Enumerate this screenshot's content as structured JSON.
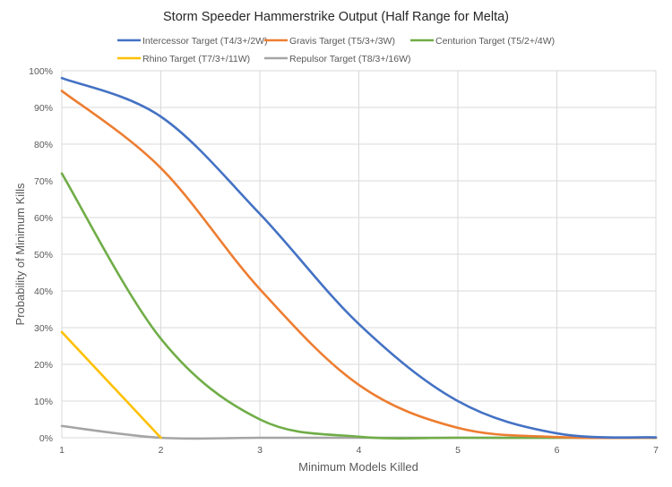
{
  "chart_data": {
    "type": "line",
    "title": "Storm Speeder Hammerstrike Output (Half Range for Melta)",
    "xlabel": "Minimum Models Killed",
    "ylabel": "Probability of Minimum Kills",
    "x": [
      1,
      2,
      3,
      4,
      5,
      6,
      7
    ],
    "xlim": [
      1,
      7
    ],
    "ylim": [
      0,
      1
    ],
    "x_ticks": [
      "1",
      "2",
      "3",
      "4",
      "5",
      "6",
      "7"
    ],
    "y_ticks": [
      {
        "value": 0,
        "label": "0%"
      },
      {
        "value": 0.1,
        "label": "10%"
      },
      {
        "value": 0.2,
        "label": "20%"
      },
      {
        "value": 0.3,
        "label": "30%"
      },
      {
        "value": 0.4,
        "label": "40%"
      },
      {
        "value": 0.5,
        "label": "50%"
      },
      {
        "value": 0.6,
        "label": "60%"
      },
      {
        "value": 0.7,
        "label": "70%"
      },
      {
        "value": 0.8,
        "label": "80%"
      },
      {
        "value": 0.9,
        "label": "90%"
      },
      {
        "value": 1.0,
        "label": "100%"
      }
    ],
    "grid": true,
    "legend_position": "top",
    "smooth": true,
    "series": [
      {
        "name": "Intercessor Target (T4/3+/2W)",
        "color": "#4472c4",
        "values": [
          0.98,
          0.875,
          0.61,
          0.31,
          0.1,
          0.012,
          0.001
        ]
      },
      {
        "name": "Gravis Target (T5/3+/3W)",
        "color": "#ed7d31",
        "values": [
          0.945,
          0.735,
          0.405,
          0.144,
          0.027,
          0.002,
          0.0
        ]
      },
      {
        "name": "Centurion Target (T5/2+/4W)",
        "color": "#70ad47",
        "values": [
          0.72,
          0.27,
          0.05,
          0.003,
          0.0,
          0.0,
          0.0
        ]
      },
      {
        "name": "Rhino Target (T7/3+/11W)",
        "color": "#ffc000",
        "values": [
          0.288,
          0.0
        ]
      },
      {
        "name": "Repulsor Target (T8/3+/16W)",
        "color": "#a5a5a5",
        "values": [
          0.032,
          0.0,
          0.0,
          0.0,
          0.0,
          0.0,
          0.0
        ]
      }
    ]
  }
}
